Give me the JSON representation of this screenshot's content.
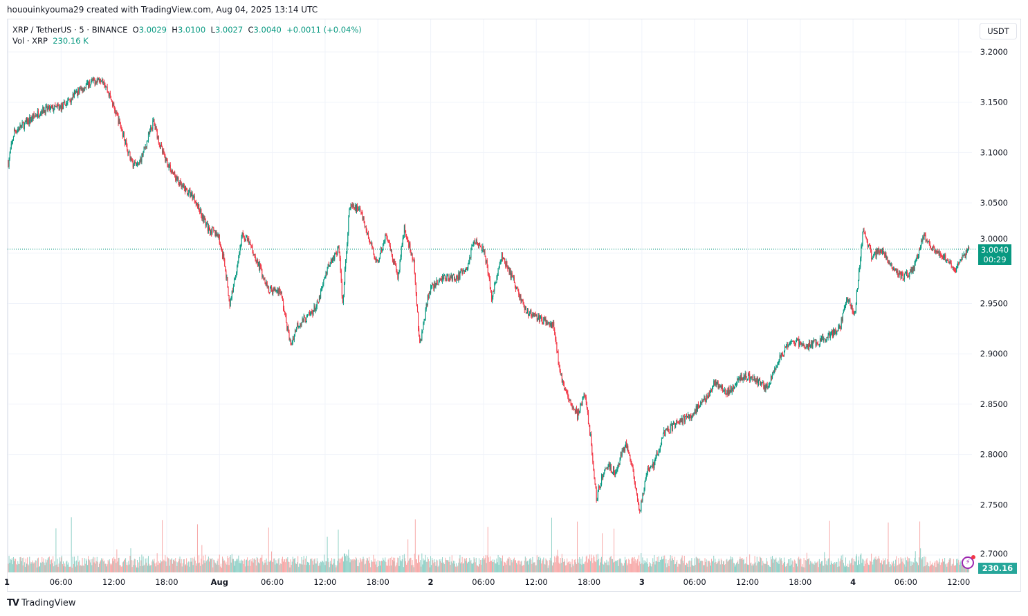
{
  "credit": "hououinkyouma29 created with TradingView.com, Aug 04, 2025 13:14 UTC",
  "legend": {
    "symbol": "XRP / TetherUS · 5 · BINANCE",
    "o_label": "O",
    "o": "3.0029",
    "h_label": "H",
    "h": "3.0100",
    "l_label": "L",
    "l": "3.0027",
    "c_label": "C",
    "c": "3.0040",
    "change": "+0.0011 (+0.04%)",
    "vol_label": "Vol · XRP",
    "vol": "230.16 K"
  },
  "currency_button": "USDT",
  "last_price_label": "3.0040",
  "countdown": "00:29",
  "volume_label": "230.16 K",
  "footer_brand": "TradingView",
  "colors": {
    "up": "#089981",
    "down": "#f23645",
    "vol_up": "#8fd0c6",
    "vol_down": "#f7a9a8",
    "grid": "#f0f3fa",
    "alert_icon": "#9c27b0"
  },
  "icons": {
    "alert": "lightning-alert-icon",
    "logo": "tradingview-logo-icon"
  },
  "chart_data": {
    "type": "candlestick",
    "interval": "5m",
    "y_ticks": [
      "3.2000",
      "3.1500",
      "3.1000",
      "3.0500",
      "3.0000",
      "2.9500",
      "2.9000",
      "2.8500",
      "2.8000",
      "2.7500",
      "2.7000"
    ],
    "ylim": [
      2.7,
      3.2
    ],
    "x_ticks": [
      {
        "label": "1",
        "t": "2025-07-31T00:00"
      },
      {
        "label": "06:00",
        "t": "2025-07-31T06:00"
      },
      {
        "label": "12:00",
        "t": "2025-07-31T12:00"
      },
      {
        "label": "18:00",
        "t": "2025-07-31T18:00"
      },
      {
        "label": "Aug",
        "t": "2025-08-01T00:00"
      },
      {
        "label": "06:00",
        "t": "2025-08-01T06:00"
      },
      {
        "label": "12:00",
        "t": "2025-08-01T12:00"
      },
      {
        "label": "18:00",
        "t": "2025-08-01T18:00"
      },
      {
        "label": "2",
        "t": "2025-08-02T00:00"
      },
      {
        "label": "06:00",
        "t": "2025-08-02T06:00"
      },
      {
        "label": "12:00",
        "t": "2025-08-02T12:00"
      },
      {
        "label": "18:00",
        "t": "2025-08-02T18:00"
      },
      {
        "label": "3",
        "t": "2025-08-03T00:00"
      },
      {
        "label": "06:00",
        "t": "2025-08-03T06:00"
      },
      {
        "label": "12:00",
        "t": "2025-08-03T12:00"
      },
      {
        "label": "18:00",
        "t": "2025-08-03T18:00"
      },
      {
        "label": "4",
        "t": "2025-08-04T00:00"
      },
      {
        "label": "06:00",
        "t": "2025-08-04T06:00"
      },
      {
        "label": "12:00",
        "t": "2025-08-04T12:00"
      }
    ],
    "grid": true,
    "last_price": 3.004,
    "price_path": [
      [
        "2025-07-31T00:00",
        3.09
      ],
      [
        "2025-07-31T00:40",
        3.121
      ],
      [
        "2025-07-31T01:50",
        3.128
      ],
      [
        "2025-07-31T03:45",
        3.142
      ],
      [
        "2025-07-31T06:05",
        3.145
      ],
      [
        "2025-07-31T07:40",
        3.159
      ],
      [
        "2025-07-31T09:15",
        3.169
      ],
      [
        "2025-07-31T10:40",
        3.175
      ],
      [
        "2025-07-31T11:35",
        3.155
      ],
      [
        "2025-07-31T12:50",
        3.124
      ],
      [
        "2025-07-31T14:00",
        3.09
      ],
      [
        "2025-07-31T14:45",
        3.087
      ],
      [
        "2025-07-31T15:30",
        3.104
      ],
      [
        "2025-07-31T16:30",
        3.131
      ],
      [
        "2025-07-31T17:30",
        3.1
      ],
      [
        "2025-07-31T18:40",
        3.08
      ],
      [
        "2025-07-31T19:40",
        3.066
      ],
      [
        "2025-07-31T21:05",
        3.056
      ],
      [
        "2025-07-31T22:40",
        3.025
      ],
      [
        "2025-07-31T23:50",
        3.018
      ],
      [
        "2025-08-01T00:35",
        2.99
      ],
      [
        "2025-08-01T01:10",
        2.949
      ],
      [
        "2025-08-01T01:45",
        2.976
      ],
      [
        "2025-08-01T02:35",
        3.018
      ],
      [
        "2025-08-01T03:20",
        3.011
      ],
      [
        "2025-08-01T04:30",
        2.987
      ],
      [
        "2025-08-01T05:40",
        2.963
      ],
      [
        "2025-08-01T06:55",
        2.963
      ],
      [
        "2025-08-01T08:05",
        2.908
      ],
      [
        "2025-08-01T08:50",
        2.929
      ],
      [
        "2025-08-01T10:00",
        2.936
      ],
      [
        "2025-08-01T11:10",
        2.949
      ],
      [
        "2025-08-01T12:25",
        2.99
      ],
      [
        "2025-08-01T13:35",
        3.004
      ],
      [
        "2025-08-01T14:00",
        2.949
      ],
      [
        "2025-08-01T14:45",
        3.045
      ],
      [
        "2025-08-01T15:55",
        3.045
      ],
      [
        "2025-08-01T17:05",
        3.011
      ],
      [
        "2025-08-01T17:55",
        2.99
      ],
      [
        "2025-08-01T18:55",
        3.018
      ],
      [
        "2025-08-01T20:15",
        2.976
      ],
      [
        "2025-08-01T21:00",
        3.025
      ],
      [
        "2025-08-01T22:05",
        2.99
      ],
      [
        "2025-08-01T22:45",
        2.908
      ],
      [
        "2025-08-01T23:50",
        2.963
      ],
      [
        "2025-08-02T01:25",
        2.976
      ],
      [
        "2025-08-02T02:55",
        2.976
      ],
      [
        "2025-08-02T04:05",
        2.983
      ],
      [
        "2025-08-02T04:55",
        3.014
      ],
      [
        "2025-08-02T06:05",
        3.004
      ],
      [
        "2025-08-02T06:55",
        2.956
      ],
      [
        "2025-08-02T08:05",
        2.997
      ],
      [
        "2025-08-02T09:15",
        2.976
      ],
      [
        "2025-08-02T10:50",
        2.942
      ],
      [
        "2025-08-02T12:20",
        2.935
      ],
      [
        "2025-08-02T13:55",
        2.928
      ],
      [
        "2025-08-02T14:45",
        2.88
      ],
      [
        "2025-08-02T15:30",
        2.86
      ],
      [
        "2025-08-02T16:40",
        2.839
      ],
      [
        "2025-08-02T17:30",
        2.86
      ],
      [
        "2025-08-02T18:15",
        2.811
      ],
      [
        "2025-08-02T18:50",
        2.756
      ],
      [
        "2025-08-02T19:50",
        2.79
      ],
      [
        "2025-08-02T21:00",
        2.783
      ],
      [
        "2025-08-02T22:10",
        2.811
      ],
      [
        "2025-08-02T23:00",
        2.783
      ],
      [
        "2025-08-02T23:45",
        2.742
      ],
      [
        "2025-08-03T00:35",
        2.783
      ],
      [
        "2025-08-03T01:20",
        2.79
      ],
      [
        "2025-08-03T02:30",
        2.821
      ],
      [
        "2025-08-03T04:05",
        2.832
      ],
      [
        "2025-08-03T05:40",
        2.839
      ],
      [
        "2025-08-03T07:15",
        2.856
      ],
      [
        "2025-08-03T08:25",
        2.873
      ],
      [
        "2025-08-03T09:35",
        2.859
      ],
      [
        "2025-08-03T11:10",
        2.877
      ],
      [
        "2025-08-03T12:20",
        2.877
      ],
      [
        "2025-08-03T13:30",
        2.87
      ],
      [
        "2025-08-03T14:20",
        2.866
      ],
      [
        "2025-08-03T15:30",
        2.894
      ],
      [
        "2025-08-03T17:05",
        2.914
      ],
      [
        "2025-08-03T18:35",
        2.907
      ],
      [
        "2025-08-03T19:50",
        2.911
      ],
      [
        "2025-08-03T21:25",
        2.918
      ],
      [
        "2025-08-03T22:35",
        2.928
      ],
      [
        "2025-08-03T23:20",
        2.956
      ],
      [
        "2025-08-04T00:10",
        2.939
      ],
      [
        "2025-08-04T01:10",
        3.025
      ],
      [
        "2025-08-04T02:05",
        2.997
      ],
      [
        "2025-08-04T03:15",
        3.004
      ],
      [
        "2025-08-04T04:30",
        2.987
      ],
      [
        "2025-08-04T05:40",
        2.976
      ],
      [
        "2025-08-04T06:50",
        2.983
      ],
      [
        "2025-08-04T08:00",
        3.018
      ],
      [
        "2025-08-04T09:10",
        3.004
      ],
      [
        "2025-08-04T10:20",
        2.997
      ],
      [
        "2025-08-04T11:30",
        2.983
      ],
      [
        "2025-08-04T12:35",
        2.997
      ],
      [
        "2025-08-04T13:10",
        3.004
      ]
    ]
  }
}
